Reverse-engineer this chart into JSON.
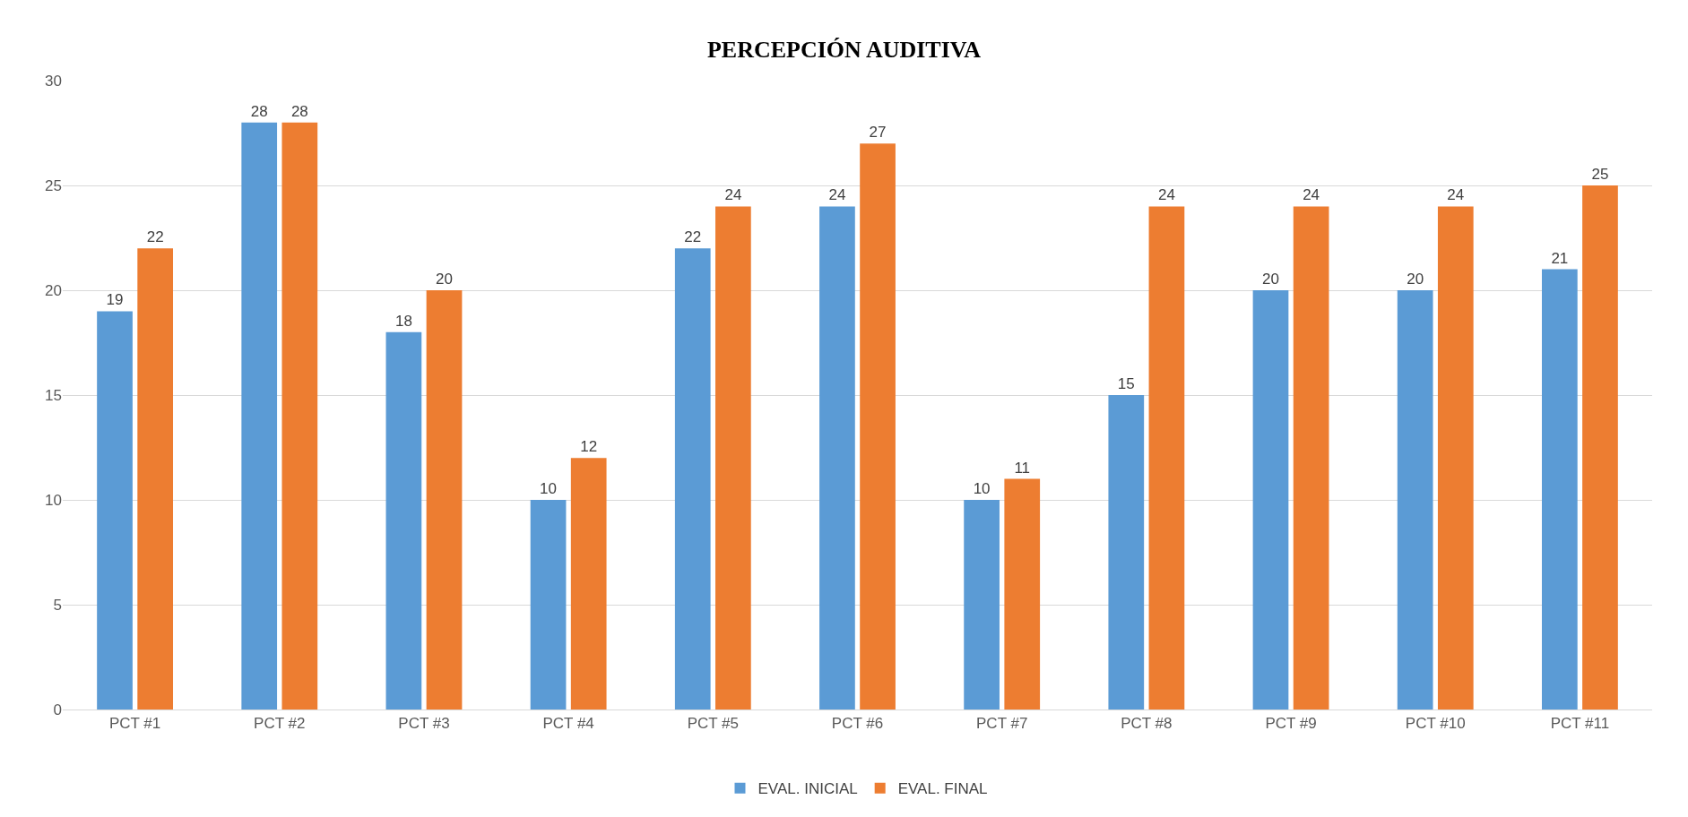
{
  "chart_data": {
    "type": "bar",
    "title": "PERCEPCIÓN AUDITIVA",
    "categories": [
      "PCT #1",
      "PCT #2",
      "PCT #3",
      "PCT #4",
      "PCT #5",
      "PCT #6",
      "PCT #7",
      "PCT #8",
      "PCT #9",
      "PCT #10",
      "PCT #11"
    ],
    "series": [
      {
        "name": "EVAL. INICIAL",
        "color": "#5b9bd5",
        "values": [
          19,
          28,
          18,
          10,
          22,
          24,
          10,
          15,
          20,
          20,
          21
        ]
      },
      {
        "name": "EVAL. FINAL",
        "color": "#ed7d31",
        "values": [
          22,
          28,
          20,
          12,
          24,
          27,
          11,
          24,
          24,
          24,
          25
        ]
      }
    ],
    "ylim": [
      0,
      30
    ],
    "yticks": [
      0,
      5,
      10,
      15,
      20,
      25,
      30
    ],
    "grid": "y",
    "legend": "bottom",
    "data_labels": true
  }
}
